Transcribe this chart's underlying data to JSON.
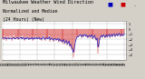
{
  "title_line1": "Milwaukee Weather Wind Direction",
  "title_line2": "Normalized and Median",
  "title_line3": "(24 Hours) (New)",
  "background_color": "#d4d0c8",
  "plot_bg_color": "#ffffff",
  "bar_color": "#cc0000",
  "line_color_blue": "#0000bb",
  "line_color_red": "#cc0000",
  "ylim": [
    -6.0,
    1.5
  ],
  "yticks": [
    -5,
    -4,
    -3,
    -2,
    -1,
    0,
    1
  ],
  "num_points": 144,
  "grid_color": "#bbbbbb",
  "title_fontsize": 3.8,
  "tick_fontsize": 2.5,
  "bar_data": [
    -1.8,
    -1.5,
    -2.1,
    -1.2,
    -1.9,
    -2.3,
    -1.4,
    -1.7,
    -2.0,
    -1.3,
    -1.6,
    -2.2,
    -1.8,
    -1.1,
    -1.9,
    -2.0,
    -1.7,
    -1.5,
    -1.3,
    -2.1,
    -1.8,
    -1.6,
    -1.4,
    -2.0,
    -1.2,
    -1.8,
    -2.3,
    -1.6,
    -1.9,
    -1.4,
    -1.7,
    -2.1,
    -1.5,
    -2.0,
    -1.8,
    -1.3,
    -2.2,
    -1.6,
    -1.9,
    -1.7,
    -1.4,
    -2.0,
    -1.8,
    -1.5,
    -2.1,
    -1.7,
    -2.3,
    -1.6,
    -1.2,
    -1.9,
    -2.2,
    -1.8,
    -1.5,
    -2.0,
    -1.7,
    -1.3,
    -2.4,
    -1.9,
    -1.6,
    -2.1,
    -2.5,
    -2.0,
    -1.8,
    -2.3,
    -2.1,
    -1.7,
    -2.6,
    -2.0,
    -2.4,
    -2.2,
    -2.8,
    -2.5,
    -2.1,
    -3.0,
    -2.7,
    -2.3,
    -3.2,
    -2.9,
    -2.5,
    -3.5,
    -3.1,
    -3.8,
    -4.0,
    -5.5,
    -4.5,
    -2.5,
    -1.8,
    -1.5,
    -1.2,
    -1.6,
    -1.4,
    -1.0,
    -1.3,
    -1.7,
    -1.1,
    -1.5,
    -1.2,
    -0.9,
    -1.6,
    -1.3,
    -1.8,
    -1.5,
    -1.2,
    -1.7,
    -1.4,
    -1.1,
    -2.0,
    -1.6,
    -1.3,
    -1.9,
    -2.3,
    -1.8,
    -4.8,
    -3.5,
    -2.1,
    -1.6,
    -1.3,
    -1.7,
    -1.4,
    -1.1,
    -1.8,
    -1.5,
    -1.2,
    -1.6,
    -1.3,
    -1.0,
    -1.7,
    -1.4,
    -1.1,
    -1.5,
    -1.2,
    -0.9,
    -1.6,
    -1.3,
    -1.0,
    -1.4,
    -1.1,
    -0.8,
    -1.5,
    -1.2,
    -1.0,
    -1.4,
    -1.1,
    -0.9
  ],
  "median_data": [
    -1.8,
    -1.7,
    -1.8,
    -1.6,
    -1.8,
    -1.9,
    -1.7,
    -1.8,
    -1.9,
    -1.7,
    -1.8,
    -1.9,
    -1.8,
    -1.6,
    -1.8,
    -1.9,
    -1.8,
    -1.7,
    -1.6,
    -1.9,
    -1.8,
    -1.7,
    -1.6,
    -1.9,
    -1.6,
    -1.8,
    -2.0,
    -1.7,
    -1.9,
    -1.6,
    -1.8,
    -2.0,
    -1.7,
    -1.9,
    -1.8,
    -1.6,
    -2.0,
    -1.7,
    -1.9,
    -1.8,
    -1.6,
    -1.9,
    -1.8,
    -1.6,
    -1.9,
    -1.8,
    -2.0,
    -1.7,
    -1.5,
    -1.8,
    -2.0,
    -1.8,
    -1.6,
    -1.9,
    -1.8,
    -1.5,
    -2.1,
    -1.9,
    -1.7,
    -2.0,
    -2.2,
    -1.9,
    -1.8,
    -2.1,
    -2.0,
    -1.8,
    -2.3,
    -1.9,
    -2.2,
    -2.1,
    -2.5,
    -2.3,
    -2.0,
    -2.7,
    -2.5,
    -2.2,
    -2.9,
    -2.7,
    -2.3,
    -3.2,
    -2.9,
    -3.5,
    -3.8,
    -4.5,
    -4.0,
    -3.0,
    -2.2,
    -1.7,
    -1.4,
    -1.5,
    -1.3,
    -1.1,
    -1.2,
    -1.5,
    -1.1,
    -1.4,
    -1.2,
    -1.0,
    -1.4,
    -1.2,
    -1.6,
    -1.4,
    -1.2,
    -1.5,
    -1.3,
    -1.1,
    -1.8,
    -1.5,
    -1.2,
    -1.7,
    -2.1,
    -1.7,
    -3.5,
    -3.0,
    -1.9,
    -1.5,
    -1.2,
    -1.5,
    -1.3,
    -1.1,
    -1.6,
    -1.4,
    -1.1,
    -1.5,
    -1.2,
    -1.0,
    -1.5,
    -1.3,
    -1.0,
    -1.4,
    -1.1,
    -0.9,
    -1.4,
    -1.2,
    -0.9,
    -1.3,
    -1.1,
    -0.8,
    -1.3,
    -1.1,
    -1.0,
    -1.3,
    -1.1,
    -0.9
  ]
}
